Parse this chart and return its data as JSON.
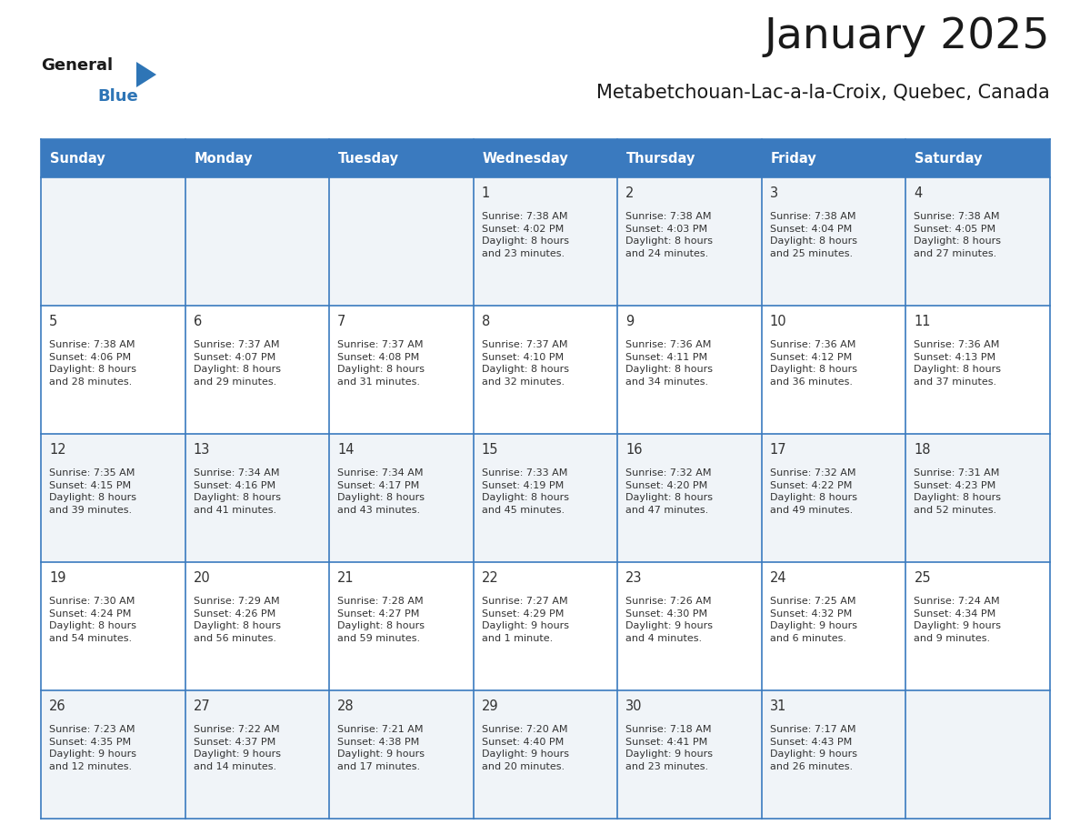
{
  "title": "January 2025",
  "subtitle": "Metabetchouan-Lac-a-la-Croix, Quebec, Canada",
  "header_bg": "#3a7abf",
  "header_text": "#ffffff",
  "border_color": "#3a7abf",
  "day_names": [
    "Sunday",
    "Monday",
    "Tuesday",
    "Wednesday",
    "Thursday",
    "Friday",
    "Saturday"
  ],
  "title_color": "#1a1a1a",
  "subtitle_color": "#1a1a1a",
  "text_color": "#333333",
  "row_bg_odd": "#f0f4f8",
  "row_bg_even": "#ffffff",
  "days": [
    {
      "day": 1,
      "col": 3,
      "row": 0,
      "sunrise": "7:38 AM",
      "sunset": "4:02 PM",
      "daylight_line1": "Daylight: 8 hours",
      "daylight_line2": "and 23 minutes."
    },
    {
      "day": 2,
      "col": 4,
      "row": 0,
      "sunrise": "7:38 AM",
      "sunset": "4:03 PM",
      "daylight_line1": "Daylight: 8 hours",
      "daylight_line2": "and 24 minutes."
    },
    {
      "day": 3,
      "col": 5,
      "row": 0,
      "sunrise": "7:38 AM",
      "sunset": "4:04 PM",
      "daylight_line1": "Daylight: 8 hours",
      "daylight_line2": "and 25 minutes."
    },
    {
      "day": 4,
      "col": 6,
      "row": 0,
      "sunrise": "7:38 AM",
      "sunset": "4:05 PM",
      "daylight_line1": "Daylight: 8 hours",
      "daylight_line2": "and 27 minutes."
    },
    {
      "day": 5,
      "col": 0,
      "row": 1,
      "sunrise": "7:38 AM",
      "sunset": "4:06 PM",
      "daylight_line1": "Daylight: 8 hours",
      "daylight_line2": "and 28 minutes."
    },
    {
      "day": 6,
      "col": 1,
      "row": 1,
      "sunrise": "7:37 AM",
      "sunset": "4:07 PM",
      "daylight_line1": "Daylight: 8 hours",
      "daylight_line2": "and 29 minutes."
    },
    {
      "day": 7,
      "col": 2,
      "row": 1,
      "sunrise": "7:37 AM",
      "sunset": "4:08 PM",
      "daylight_line1": "Daylight: 8 hours",
      "daylight_line2": "and 31 minutes."
    },
    {
      "day": 8,
      "col": 3,
      "row": 1,
      "sunrise": "7:37 AM",
      "sunset": "4:10 PM",
      "daylight_line1": "Daylight: 8 hours",
      "daylight_line2": "and 32 minutes."
    },
    {
      "day": 9,
      "col": 4,
      "row": 1,
      "sunrise": "7:36 AM",
      "sunset": "4:11 PM",
      "daylight_line1": "Daylight: 8 hours",
      "daylight_line2": "and 34 minutes."
    },
    {
      "day": 10,
      "col": 5,
      "row": 1,
      "sunrise": "7:36 AM",
      "sunset": "4:12 PM",
      "daylight_line1": "Daylight: 8 hours",
      "daylight_line2": "and 36 minutes."
    },
    {
      "day": 11,
      "col": 6,
      "row": 1,
      "sunrise": "7:36 AM",
      "sunset": "4:13 PM",
      "daylight_line1": "Daylight: 8 hours",
      "daylight_line2": "and 37 minutes."
    },
    {
      "day": 12,
      "col": 0,
      "row": 2,
      "sunrise": "7:35 AM",
      "sunset": "4:15 PM",
      "daylight_line1": "Daylight: 8 hours",
      "daylight_line2": "and 39 minutes."
    },
    {
      "day": 13,
      "col": 1,
      "row": 2,
      "sunrise": "7:34 AM",
      "sunset": "4:16 PM",
      "daylight_line1": "Daylight: 8 hours",
      "daylight_line2": "and 41 minutes."
    },
    {
      "day": 14,
      "col": 2,
      "row": 2,
      "sunrise": "7:34 AM",
      "sunset": "4:17 PM",
      "daylight_line1": "Daylight: 8 hours",
      "daylight_line2": "and 43 minutes."
    },
    {
      "day": 15,
      "col": 3,
      "row": 2,
      "sunrise": "7:33 AM",
      "sunset": "4:19 PM",
      "daylight_line1": "Daylight: 8 hours",
      "daylight_line2": "and 45 minutes."
    },
    {
      "day": 16,
      "col": 4,
      "row": 2,
      "sunrise": "7:32 AM",
      "sunset": "4:20 PM",
      "daylight_line1": "Daylight: 8 hours",
      "daylight_line2": "and 47 minutes."
    },
    {
      "day": 17,
      "col": 5,
      "row": 2,
      "sunrise": "7:32 AM",
      "sunset": "4:22 PM",
      "daylight_line1": "Daylight: 8 hours",
      "daylight_line2": "and 49 minutes."
    },
    {
      "day": 18,
      "col": 6,
      "row": 2,
      "sunrise": "7:31 AM",
      "sunset": "4:23 PM",
      "daylight_line1": "Daylight: 8 hours",
      "daylight_line2": "and 52 minutes."
    },
    {
      "day": 19,
      "col": 0,
      "row": 3,
      "sunrise": "7:30 AM",
      "sunset": "4:24 PM",
      "daylight_line1": "Daylight: 8 hours",
      "daylight_line2": "and 54 minutes."
    },
    {
      "day": 20,
      "col": 1,
      "row": 3,
      "sunrise": "7:29 AM",
      "sunset": "4:26 PM",
      "daylight_line1": "Daylight: 8 hours",
      "daylight_line2": "and 56 minutes."
    },
    {
      "day": 21,
      "col": 2,
      "row": 3,
      "sunrise": "7:28 AM",
      "sunset": "4:27 PM",
      "daylight_line1": "Daylight: 8 hours",
      "daylight_line2": "and 59 minutes."
    },
    {
      "day": 22,
      "col": 3,
      "row": 3,
      "sunrise": "7:27 AM",
      "sunset": "4:29 PM",
      "daylight_line1": "Daylight: 9 hours",
      "daylight_line2": "and 1 minute."
    },
    {
      "day": 23,
      "col": 4,
      "row": 3,
      "sunrise": "7:26 AM",
      "sunset": "4:30 PM",
      "daylight_line1": "Daylight: 9 hours",
      "daylight_line2": "and 4 minutes."
    },
    {
      "day": 24,
      "col": 5,
      "row": 3,
      "sunrise": "7:25 AM",
      "sunset": "4:32 PM",
      "daylight_line1": "Daylight: 9 hours",
      "daylight_line2": "and 6 minutes."
    },
    {
      "day": 25,
      "col": 6,
      "row": 3,
      "sunrise": "7:24 AM",
      "sunset": "4:34 PM",
      "daylight_line1": "Daylight: 9 hours",
      "daylight_line2": "and 9 minutes."
    },
    {
      "day": 26,
      "col": 0,
      "row": 4,
      "sunrise": "7:23 AM",
      "sunset": "4:35 PM",
      "daylight_line1": "Daylight: 9 hours",
      "daylight_line2": "and 12 minutes."
    },
    {
      "day": 27,
      "col": 1,
      "row": 4,
      "sunrise": "7:22 AM",
      "sunset": "4:37 PM",
      "daylight_line1": "Daylight: 9 hours",
      "daylight_line2": "and 14 minutes."
    },
    {
      "day": 28,
      "col": 2,
      "row": 4,
      "sunrise": "7:21 AM",
      "sunset": "4:38 PM",
      "daylight_line1": "Daylight: 9 hours",
      "daylight_line2": "and 17 minutes."
    },
    {
      "day": 29,
      "col": 3,
      "row": 4,
      "sunrise": "7:20 AM",
      "sunset": "4:40 PM",
      "daylight_line1": "Daylight: 9 hours",
      "daylight_line2": "and 20 minutes."
    },
    {
      "day": 30,
      "col": 4,
      "row": 4,
      "sunrise": "7:18 AM",
      "sunset": "4:41 PM",
      "daylight_line1": "Daylight: 9 hours",
      "daylight_line2": "and 23 minutes."
    },
    {
      "day": 31,
      "col": 5,
      "row": 4,
      "sunrise": "7:17 AM",
      "sunset": "4:43 PM",
      "daylight_line1": "Daylight: 9 hours",
      "daylight_line2": "and 26 minutes."
    }
  ]
}
